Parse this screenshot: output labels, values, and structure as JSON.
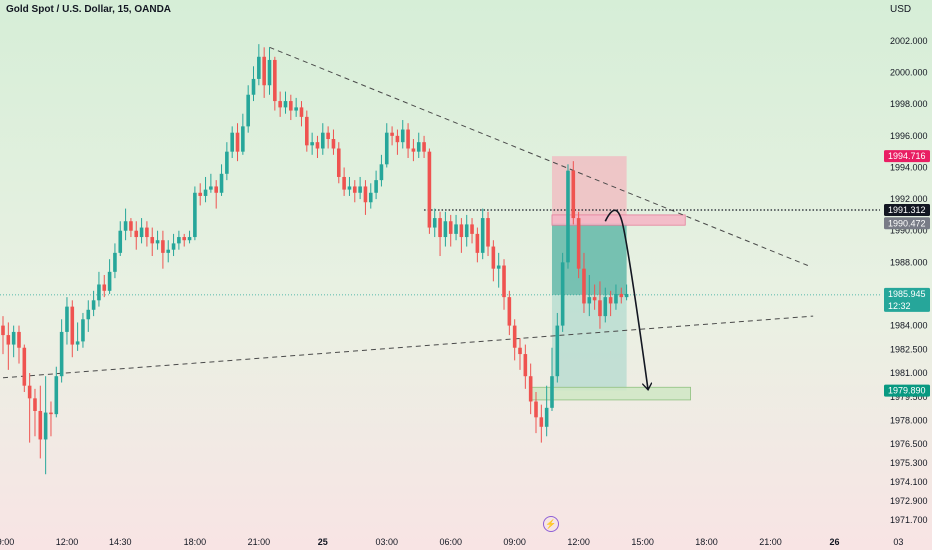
{
  "header": {
    "title": "Gold Spot / U.S. Dollar, 15, OANDA",
    "currency": "USD"
  },
  "icons": {
    "bottom_badge": "lightning-icon"
  },
  "colors": {
    "up": "#26a69a",
    "down": "#ef5350",
    "stop_zone": "#f2b8bf",
    "target_zone": "#9fd4c8",
    "tag_red": "#e91e63",
    "tag_black": "#131722",
    "tag_grey": "#787b86",
    "tag_green": "#26a69a",
    "tag_teal": "#089981"
  },
  "chart_data": {
    "type": "candlestick",
    "title": "Gold Spot / U.S. Dollar, 15, OANDA",
    "symbol": "XAUUSD",
    "interval": "15",
    "source": "OANDA",
    "ylim": [
      1971.2,
      2003.2
    ],
    "y_ticks": [
      {
        "value": 2002.0,
        "label": "2002.000"
      },
      {
        "value": 2000.0,
        "label": "2000.000"
      },
      {
        "value": 1998.0,
        "label": "1998.000"
      },
      {
        "value": 1996.0,
        "label": "1996.000"
      },
      {
        "value": 1994.0,
        "label": "1994.000"
      },
      {
        "value": 1992.0,
        "label": "1992.000"
      },
      {
        "value": 1990.0,
        "label": "1990.000"
      },
      {
        "value": 1988.0,
        "label": "1988.000"
      },
      {
        "value": 1986.0,
        "label": "1986.000"
      },
      {
        "value": 1984.0,
        "label": "1984.000"
      },
      {
        "value": 1982.5,
        "label": "1982.500"
      },
      {
        "value": 1981.0,
        "label": "1981.000"
      },
      {
        "value": 1979.5,
        "label": "1979.500"
      },
      {
        "value": 1978.0,
        "label": "1978.000"
      },
      {
        "value": 1976.5,
        "label": "1976.500"
      },
      {
        "value": 1975.3,
        "label": "1975.300"
      },
      {
        "value": 1974.1,
        "label": "1974.100"
      },
      {
        "value": 1972.9,
        "label": "1972.900"
      },
      {
        "value": 1971.7,
        "label": "1971.700"
      }
    ],
    "x_ticks": [
      {
        "x": 0,
        "label": "09:00",
        "bold": false
      },
      {
        "x": 12,
        "label": "12:00",
        "bold": false
      },
      {
        "x": 22,
        "label": "14:30",
        "bold": false
      },
      {
        "x": 36,
        "label": "18:00",
        "bold": false
      },
      {
        "x": 48,
        "label": "21:00",
        "bold": false
      },
      {
        "x": 60,
        "label": "25",
        "bold": true
      },
      {
        "x": 72,
        "label": "03:00",
        "bold": false
      },
      {
        "x": 84,
        "label": "06:00",
        "bold": false
      },
      {
        "x": 96,
        "label": "09:00",
        "bold": false
      },
      {
        "x": 108,
        "label": "12:00",
        "bold": false
      },
      {
        "x": 120,
        "label": "15:00",
        "bold": false
      },
      {
        "x": 132,
        "label": "18:00",
        "bold": false
      },
      {
        "x": 144,
        "label": "21:00",
        "bold": false
      },
      {
        "x": 156,
        "label": "26",
        "bold": true
      },
      {
        "x": 168,
        "label": "03",
        "bold": false
      }
    ],
    "candles": [
      [
        1984.0,
        1983.4,
        1984.6,
        1982.2
      ],
      [
        1983.4,
        1982.8,
        1984.2,
        1981.2
      ],
      [
        1982.8,
        1983.6,
        1984.0,
        1982.0
      ],
      [
        1983.6,
        1982.6,
        1984.0,
        1981.6
      ],
      [
        1982.6,
        1980.2,
        1982.8,
        1979.8
      ],
      [
        1980.2,
        1979.4,
        1981.0,
        1976.6
      ],
      [
        1979.4,
        1978.6,
        1980.0,
        1977.0
      ],
      [
        1978.6,
        1976.8,
        1980.2,
        1975.6
      ],
      [
        1976.8,
        1978.5,
        1980.8,
        1974.6
      ],
      [
        1978.5,
        1978.4,
        1979.2,
        1977.0
      ],
      [
        1978.4,
        1980.8,
        1981.4,
        1978.2
      ],
      [
        1980.8,
        1983.6,
        1984.4,
        1980.4
      ],
      [
        1983.6,
        1985.2,
        1985.8,
        1982.8
      ],
      [
        1985.2,
        1982.8,
        1985.6,
        1982.0
      ],
      [
        1982.8,
        1983.0,
        1984.2,
        1982.4
      ],
      [
        1983.0,
        1984.4,
        1984.8,
        1982.6
      ],
      [
        1984.4,
        1985.0,
        1985.6,
        1983.6
      ],
      [
        1985.0,
        1985.6,
        1986.2,
        1984.6
      ],
      [
        1985.6,
        1986.6,
        1987.4,
        1985.2
      ],
      [
        1986.6,
        1986.2,
        1987.2,
        1985.8
      ],
      [
        1986.2,
        1987.4,
        1988.2,
        1986.0
      ],
      [
        1987.4,
        1988.6,
        1989.2,
        1987.0
      ],
      [
        1988.6,
        1990.0,
        1990.6,
        1988.4
      ],
      [
        1990.0,
        1990.6,
        1991.4,
        1989.4
      ],
      [
        1990.6,
        1990.0,
        1990.8,
        1989.6
      ],
      [
        1990.0,
        1989.6,
        1990.6,
        1988.8
      ],
      [
        1989.6,
        1990.2,
        1990.8,
        1989.2
      ],
      [
        1990.2,
        1989.6,
        1990.6,
        1989.0
      ],
      [
        1989.6,
        1989.2,
        1990.2,
        1988.4
      ],
      [
        1989.2,
        1989.4,
        1990.0,
        1988.8
      ],
      [
        1989.4,
        1988.6,
        1990.0,
        1987.6
      ],
      [
        1988.6,
        1988.8,
        1989.4,
        1988.0
      ],
      [
        1988.8,
        1989.2,
        1989.8,
        1988.4
      ],
      [
        1989.2,
        1989.6,
        1990.0,
        1988.8
      ],
      [
        1989.6,
        1989.4,
        1989.8,
        1989.0
      ],
      [
        1989.4,
        1989.6,
        1990.0,
        1989.2
      ],
      [
        1989.6,
        1992.4,
        1992.8,
        1989.4
      ],
      [
        1992.4,
        1992.2,
        1993.0,
        1991.6
      ],
      [
        1992.2,
        1992.6,
        1993.4,
        1991.8
      ],
      [
        1992.6,
        1992.8,
        1993.6,
        1992.4
      ],
      [
        1992.8,
        1992.4,
        1993.2,
        1991.4
      ],
      [
        1992.4,
        1993.6,
        1994.2,
        1992.2
      ],
      [
        1993.6,
        1995.0,
        1995.6,
        1993.2
      ],
      [
        1995.0,
        1996.2,
        1996.6,
        1994.6
      ],
      [
        1996.2,
        1995.0,
        1996.8,
        1994.4
      ],
      [
        1995.0,
        1996.6,
        1997.4,
        1994.8
      ],
      [
        1996.6,
        1998.6,
        1999.2,
        1996.2
      ],
      [
        1998.6,
        1999.6,
        2000.4,
        1998.2
      ],
      [
        1999.6,
        2001.0,
        2001.8,
        1999.2
      ],
      [
        2001.0,
        1999.2,
        2001.6,
        1998.4
      ],
      [
        1999.2,
        2000.8,
        2001.6,
        1998.6
      ],
      [
        2000.8,
        1998.2,
        2001.0,
        1997.6
      ],
      [
        1998.2,
        1997.8,
        1998.8,
        1997.2
      ],
      [
        1997.8,
        1998.2,
        1998.8,
        1997.4
      ],
      [
        1998.2,
        1997.6,
        1998.6,
        1997.0
      ],
      [
        1997.6,
        1997.8,
        1998.4,
        1997.2
      ],
      [
        1997.8,
        1997.2,
        1998.2,
        1996.6
      ],
      [
        1997.2,
        1995.4,
        1997.6,
        1995.0
      ],
      [
        1995.4,
        1995.6,
        1996.2,
        1994.8
      ],
      [
        1995.6,
        1995.2,
        1996.0,
        1994.6
      ],
      [
        1995.2,
        1996.2,
        1996.8,
        1994.8
      ],
      [
        1996.2,
        1995.8,
        1996.6,
        1995.2
      ],
      [
        1995.8,
        1995.2,
        1996.4,
        1994.8
      ],
      [
        1995.2,
        1993.4,
        1995.6,
        1993.0
      ],
      [
        1993.4,
        1992.6,
        1994.0,
        1992.2
      ],
      [
        1992.6,
        1992.8,
        1993.4,
        1992.2
      ],
      [
        1992.8,
        1992.4,
        1993.2,
        1991.8
      ],
      [
        1992.4,
        1992.8,
        1993.4,
        1992.0
      ],
      [
        1992.8,
        1991.8,
        1993.2,
        1991.0
      ],
      [
        1991.8,
        1992.4,
        1993.0,
        1991.4
      ],
      [
        1992.4,
        1993.2,
        1993.8,
        1992.0
      ],
      [
        1993.2,
        1994.2,
        1994.8,
        1992.8
      ],
      [
        1994.2,
        1996.2,
        1996.8,
        1994.0
      ],
      [
        1996.2,
        1996.0,
        1996.6,
        1995.4
      ],
      [
        1996.0,
        1995.6,
        1996.4,
        1994.8
      ],
      [
        1995.6,
        1996.4,
        1997.0,
        1995.2
      ],
      [
        1996.4,
        1995.2,
        1996.8,
        1994.6
      ],
      [
        1995.2,
        1995.0,
        1995.8,
        1994.4
      ],
      [
        1995.0,
        1995.6,
        1996.2,
        1994.6
      ],
      [
        1995.6,
        1995.0,
        1996.0,
        1994.6
      ],
      [
        1995.0,
        1990.2,
        1995.2,
        1989.8
      ],
      [
        1990.2,
        1990.8,
        1991.4,
        1989.6
      ],
      [
        1990.8,
        1989.6,
        1991.2,
        1988.4
      ],
      [
        1989.6,
        1990.6,
        1991.2,
        1989.0
      ],
      [
        1990.6,
        1989.8,
        1991.0,
        1989.0
      ],
      [
        1989.8,
        1990.4,
        1991.0,
        1989.4
      ],
      [
        1990.4,
        1989.6,
        1990.8,
        1988.6
      ],
      [
        1989.6,
        1990.4,
        1991.0,
        1989.0
      ],
      [
        1990.4,
        1989.8,
        1990.8,
        1989.2
      ],
      [
        1989.8,
        1988.6,
        1990.2,
        1988.0
      ],
      [
        1988.6,
        1990.8,
        1991.4,
        1988.2
      ],
      [
        1990.8,
        1989.0,
        1991.2,
        1988.4
      ],
      [
        1989.0,
        1987.6,
        1989.4,
        1986.8
      ],
      [
        1987.6,
        1987.8,
        1988.6,
        1986.4
      ],
      [
        1987.8,
        1985.8,
        1988.2,
        1985.0
      ],
      [
        1985.8,
        1984.0,
        1986.2,
        1983.4
      ],
      [
        1984.0,
        1982.6,
        1984.4,
        1981.8
      ],
      [
        1982.6,
        1982.2,
        1983.2,
        1981.2
      ],
      [
        1982.2,
        1980.8,
        1982.8,
        1980.0
      ],
      [
        1980.8,
        1979.2,
        1981.6,
        1978.4
      ],
      [
        1979.2,
        1978.2,
        1979.8,
        1977.2
      ],
      [
        1978.2,
        1977.6,
        1979.0,
        1976.6
      ],
      [
        1977.6,
        1978.8,
        1980.2,
        1977.0
      ],
      [
        1978.8,
        1980.8,
        1982.6,
        1978.6
      ],
      [
        1980.8,
        1984.0,
        1984.8,
        1980.4
      ],
      [
        1984.0,
        1988.0,
        1988.6,
        1983.6
      ],
      [
        1988.0,
        1993.8,
        1994.2,
        1987.6
      ],
      [
        1993.8,
        1990.8,
        1994.4,
        1990.4
      ],
      [
        1990.8,
        1987.6,
        1991.2,
        1987.0
      ],
      [
        1987.6,
        1985.4,
        1988.6,
        1984.8
      ],
      [
        1985.4,
        1985.8,
        1987.2,
        1984.6
      ],
      [
        1985.8,
        1985.6,
        1986.6,
        1985.0
      ],
      [
        1985.6,
        1984.6,
        1986.8,
        1983.8
      ],
      [
        1984.6,
        1985.8,
        1986.4,
        1984.2
      ],
      [
        1985.8,
        1985.4,
        1986.2,
        1984.6
      ],
      [
        1985.4,
        1986.0,
        1986.6,
        1985.0
      ],
      [
        1986.0,
        1985.8,
        1986.4,
        1985.4
      ],
      [
        1985.8,
        1986.0,
        1986.6,
        1985.6
      ]
    ],
    "price_labels": [
      {
        "value": 1994.716,
        "text": "1994.716",
        "color": "#e91e63"
      },
      {
        "value": 1991.312,
        "text": "1991.312",
        "color": "#131722"
      },
      {
        "value": 1990.472,
        "text": "1990.472",
        "color": "#787b86"
      },
      {
        "value": 1985.945,
        "text": "1985.945",
        "subtext": "12:32",
        "color": "#26a69a"
      },
      {
        "value": 1979.89,
        "text": "1979.890",
        "color": "#089981"
      }
    ],
    "last_price": 1985.945,
    "countdown": "12:32",
    "position": {
      "type": "short",
      "x_start": 103,
      "x_end": 117,
      "entry": 1990.472,
      "stop": 1994.716,
      "target": 1979.89
    },
    "zones": [
      {
        "kind": "resistance",
        "x_start": 103,
        "x_end": 128,
        "top": 1991.0,
        "bottom": 1990.35
      },
      {
        "kind": "support",
        "x_start": 99,
        "x_end": 129,
        "top": 1980.1,
        "bottom": 1979.3
      }
    ],
    "trendlines": [
      {
        "style": "dashed",
        "x1": 50,
        "y1": 2001.6,
        "x2": 151,
        "y2": 1987.8
      },
      {
        "style": "dashed",
        "x1": 0,
        "y1": 1980.7,
        "x2": 152,
        "y2": 1984.6
      }
    ],
    "hlines": [
      {
        "style": "dotted",
        "value": 1991.312,
        "x_start": 79
      }
    ],
    "projection": {
      "from_x": 113,
      "from_y": 1990.6,
      "peak_x": 115,
      "peak_y": 1991.1,
      "to_x": 121,
      "to_y": 1980.0
    }
  }
}
